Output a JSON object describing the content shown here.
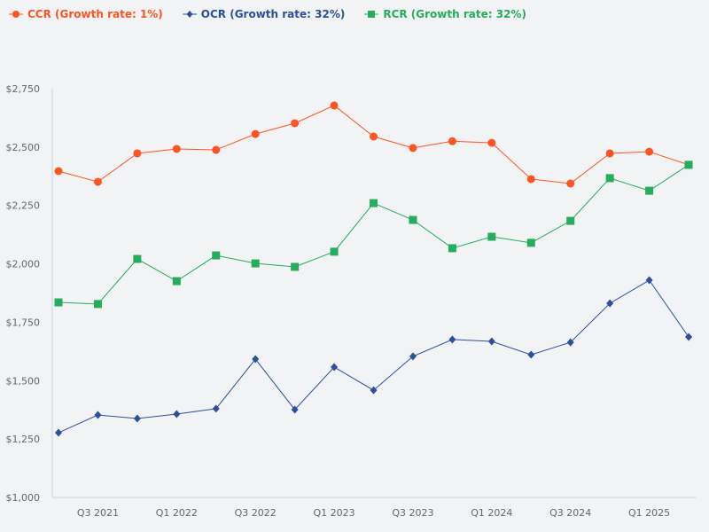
{
  "chart_data": {
    "type": "line",
    "title": "",
    "xlabel": "",
    "ylabel": "",
    "ylim": [
      1000,
      2750
    ],
    "yticks": [
      "$1,000",
      "$1,250",
      "$1,500",
      "$1,750",
      "$2,000",
      "$2,250",
      "$2,500",
      "$2,750"
    ],
    "ytick_values": [
      1000,
      1250,
      1500,
      1750,
      2000,
      2250,
      2500,
      2750
    ],
    "categories": [
      "Q2 2021",
      "Q3 2021",
      "Q4 2021",
      "Q1 2022",
      "Q2 2022",
      "Q3 2022",
      "Q4 2022",
      "Q1 2023",
      "Q2 2023",
      "Q3 2023",
      "Q4 2023",
      "Q1 2024",
      "Q2 2024",
      "Q3 2024",
      "Q4 2024",
      "Q1 2025",
      "Q2 2025"
    ],
    "xtick_labels": [
      {
        "index": 1,
        "label": "Q3 2021"
      },
      {
        "index": 3,
        "label": "Q1 2022"
      },
      {
        "index": 5,
        "label": "Q3 2022"
      },
      {
        "index": 7,
        "label": "Q1 2023"
      },
      {
        "index": 9,
        "label": "Q3 2023"
      },
      {
        "index": 11,
        "label": "Q1 2024"
      },
      {
        "index": 13,
        "label": "Q3 2024"
      },
      {
        "index": 15,
        "label": "Q1 2025"
      }
    ],
    "grid": false,
    "legend_position": "top-left",
    "series": [
      {
        "name": "CCR (Growth rate: 1%)",
        "color": "#fc5522",
        "marker": "circle",
        "values": [
          2397,
          2351,
          2473,
          2492,
          2488,
          2556,
          2602,
          2678,
          2545,
          2496,
          2525,
          2518,
          2363,
          2344,
          2473,
          2480,
          2424
        ]
      },
      {
        "name": "OCR (Growth rate: 32%)",
        "color": "#2c4f9e",
        "marker": "diamond",
        "values": [
          1277,
          1353,
          1338,
          1357,
          1380,
          1592,
          1376,
          1558,
          1459,
          1604,
          1676,
          1668,
          1611,
          1664,
          1831,
          1930,
          1687
        ]
      },
      {
        "name": "RCR (Growth rate: 32%)",
        "color": "#25ac5c",
        "marker": "square",
        "values": [
          1835,
          1828,
          2021,
          1926,
          2036,
          2002,
          1987,
          2052,
          2260,
          2188,
          2067,
          2116,
          2090,
          2184,
          2367,
          2313,
          2424
        ]
      }
    ]
  }
}
